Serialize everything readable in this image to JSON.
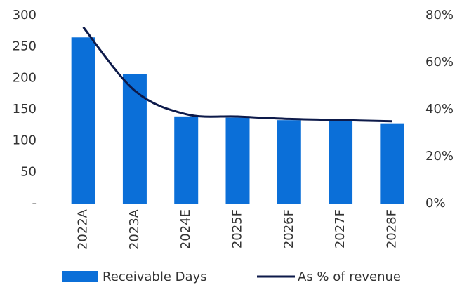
{
  "chart_data": {
    "type": "combo",
    "categories": [
      "2022A",
      "2023A",
      "2024E",
      "2025F",
      "2026F",
      "2027F",
      "2028F"
    ],
    "series": [
      {
        "name": "Receivable Days",
        "type": "bar",
        "color": "#0b6fd8",
        "values": [
          265,
          206,
          139,
          137,
          133,
          131,
          128
        ]
      },
      {
        "name": "As % of revenue",
        "type": "line",
        "axis": "y2",
        "color": "#0d1a4a",
        "values": [
          75,
          48,
          38,
          37,
          36,
          35.5,
          35
        ]
      }
    ],
    "ylim": [
      0,
      300
    ],
    "yticks": [
      {
        "value": 0,
        "label": "-"
      },
      50,
      100,
      150,
      200,
      250,
      300
    ],
    "y2lim": [
      0,
      80
    ],
    "y2ticks": [
      {
        "value": 0,
        "label": "0%"
      },
      {
        "value": 20,
        "label": "20%"
      },
      {
        "value": 40,
        "label": "40%"
      },
      {
        "value": 60,
        "label": "60%"
      },
      {
        "value": 80,
        "label": "80%"
      }
    ],
    "grid": false
  }
}
